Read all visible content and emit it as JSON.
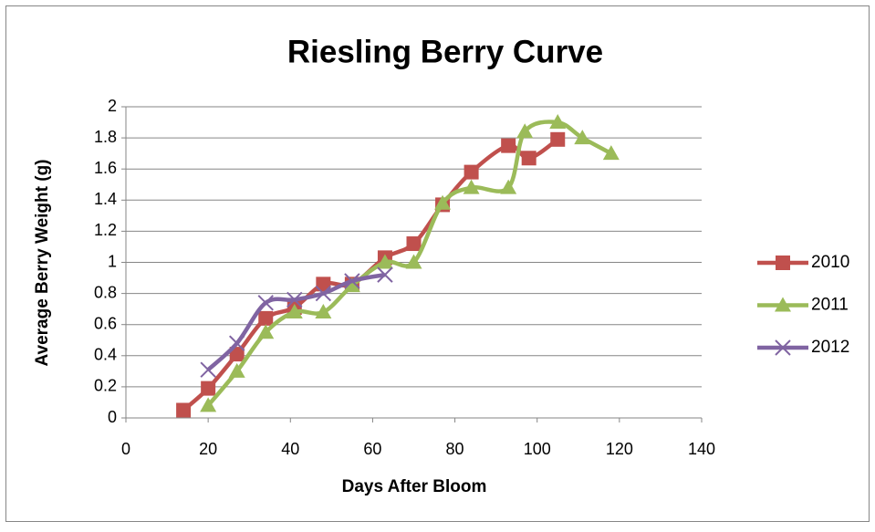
{
  "chart_data": {
    "type": "line",
    "title": "Riesling Berry Curve",
    "x_label": "Days After Bloom",
    "y_label": "Average Berry Weight (g)",
    "xlim": [
      0,
      140
    ],
    "xticks": [
      0,
      20,
      40,
      60,
      80,
      100,
      120,
      140
    ],
    "ylim": [
      0,
      2
    ],
    "yticks": [
      0,
      0.2,
      0.4,
      0.6,
      0.8,
      1,
      1.2,
      1.4,
      1.6,
      1.8,
      2
    ],
    "grid": true,
    "smooth": true,
    "legend": "right",
    "series": [
      {
        "name": "2010",
        "color": "#c0504d",
        "marker": "square",
        "x": [
          14,
          20,
          27,
          34,
          41,
          48,
          55,
          63,
          70,
          77,
          84,
          93,
          98,
          105
        ],
        "values": [
          0.05,
          0.19,
          0.41,
          0.64,
          0.71,
          0.86,
          0.86,
          1.03,
          1.12,
          1.37,
          1.58,
          1.75,
          1.67,
          1.79
        ]
      },
      {
        "name": "2011",
        "color": "#9bbb59",
        "marker": "triangle",
        "x": [
          20,
          27,
          34,
          41,
          48,
          55,
          63,
          70,
          77,
          84,
          93,
          97,
          105,
          111,
          118
        ],
        "values": [
          0.08,
          0.3,
          0.55,
          0.68,
          0.68,
          0.85,
          1.0,
          1.0,
          1.38,
          1.48,
          1.48,
          1.84,
          1.9,
          1.8,
          1.7
        ]
      },
      {
        "name": "2012",
        "color": "#8064a2",
        "marker": "x",
        "x": [
          20,
          27,
          34,
          41,
          48,
          55,
          63
        ],
        "values": [
          0.31,
          0.48,
          0.74,
          0.76,
          0.8,
          0.88,
          0.92
        ]
      }
    ]
  }
}
